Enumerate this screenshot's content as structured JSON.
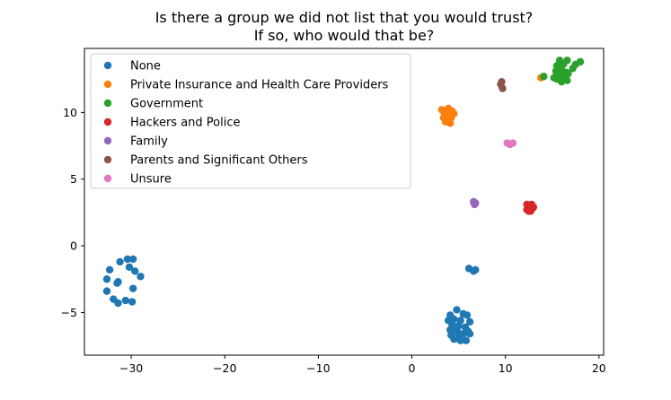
{
  "chart_data": {
    "type": "scatter",
    "title": "Is there a group we did not list that you would trust?\nIf so, who would that be?",
    "title_lines": [
      "Is there a group we did not list that you would trust?",
      "If so, who would that be?"
    ],
    "xlabel": "",
    "ylabel": "",
    "xlim": [
      -35.0,
      20.5
    ],
    "ylim": [
      -8.2,
      14.8
    ],
    "xticks": [
      -30,
      -20,
      -10,
      0,
      10,
      20
    ],
    "xtick_labels": [
      "−30",
      "−20",
      "−10",
      "0",
      "10",
      "20"
    ],
    "yticks": [
      -5,
      0,
      5,
      10
    ],
    "ytick_labels": [
      "−5",
      "0",
      "5",
      "10"
    ],
    "grid": false,
    "legend_position": "top-left",
    "series": [
      {
        "name": "None",
        "color": "#1f77b4",
        "points": [
          [
            -30.4,
            -1.0
          ],
          [
            -29.8,
            -1.0
          ],
          [
            -31.2,
            -1.2
          ],
          [
            -32.3,
            -1.8
          ],
          [
            -30.2,
            -1.6
          ],
          [
            -29.6,
            -1.9
          ],
          [
            -29.0,
            -2.3
          ],
          [
            -32.6,
            -2.5
          ],
          [
            -31.4,
            -2.7
          ],
          [
            -31.5,
            -2.8
          ],
          [
            -29.8,
            -3.2
          ],
          [
            -32.6,
            -3.4
          ],
          [
            -31.9,
            -4.0
          ],
          [
            -31.4,
            -4.3
          ],
          [
            -30.6,
            -4.1
          ],
          [
            -29.9,
            -4.2
          ],
          [
            6.1,
            -1.7
          ],
          [
            6.6,
            -1.9
          ],
          [
            6.8,
            -1.8
          ],
          [
            4.1,
            -5.2
          ],
          [
            4.8,
            -4.8
          ],
          [
            5.5,
            -5.1
          ],
          [
            5.9,
            -5.2
          ],
          [
            3.9,
            -5.6
          ],
          [
            4.5,
            -5.5
          ],
          [
            5.2,
            -5.6
          ],
          [
            6.2,
            -5.7
          ],
          [
            4.3,
            -5.9
          ],
          [
            5.0,
            -6.0
          ],
          [
            5.7,
            -6.1
          ],
          [
            4.1,
            -6.3
          ],
          [
            4.8,
            -6.3
          ],
          [
            6.0,
            -6.4
          ],
          [
            4.2,
            -6.7
          ],
          [
            5.1,
            -6.8
          ],
          [
            6.2,
            -6.6
          ],
          [
            4.5,
            -7.0
          ],
          [
            5.2,
            -7.1
          ],
          [
            5.8,
            -7.1
          ],
          [
            4.9,
            -6.5
          ],
          [
            5.5,
            -6.6
          ]
        ]
      },
      {
        "name": "Private Insurance and Health Care Providers",
        "color": "#ff7f0e",
        "points": [
          [
            3.2,
            10.2
          ],
          [
            3.9,
            10.3
          ],
          [
            4.3,
            10.1
          ],
          [
            3.5,
            9.9
          ],
          [
            4.0,
            9.8
          ],
          [
            4.5,
            9.9
          ],
          [
            3.4,
            9.6
          ],
          [
            3.8,
            9.5
          ],
          [
            4.2,
            9.6
          ],
          [
            3.6,
            9.3
          ],
          [
            4.1,
            9.2
          ],
          [
            3.9,
            9.4
          ],
          [
            13.8,
            12.6
          ]
        ]
      },
      {
        "name": "Government",
        "color": "#2ca02c",
        "points": [
          [
            15.8,
            13.9
          ],
          [
            16.6,
            13.9
          ],
          [
            17.5,
            13.6
          ],
          [
            18.0,
            13.8
          ],
          [
            15.5,
            13.5
          ],
          [
            16.2,
            13.6
          ],
          [
            17.2,
            13.3
          ],
          [
            15.4,
            13.1
          ],
          [
            16.0,
            13.2
          ],
          [
            16.5,
            13.0
          ],
          [
            15.6,
            12.8
          ],
          [
            16.2,
            12.7
          ],
          [
            16.7,
            12.9
          ],
          [
            15.5,
            12.5
          ],
          [
            16.0,
            12.3
          ],
          [
            16.6,
            12.4
          ],
          [
            15.2,
            12.6
          ],
          [
            14.1,
            12.7
          ],
          [
            15.9,
            13.7
          ]
        ]
      },
      {
        "name": "Hackers and Police",
        "color": "#d62728",
        "points": [
          [
            12.3,
            3.1
          ],
          [
            12.8,
            3.1
          ],
          [
            12.5,
            2.9
          ],
          [
            12.9,
            2.8
          ],
          [
            12.3,
            2.7
          ],
          [
            12.7,
            2.6
          ],
          [
            12.5,
            2.6
          ],
          [
            13.0,
            2.9
          ]
        ]
      },
      {
        "name": "Family",
        "color": "#9467bd",
        "points": [
          [
            6.6,
            3.3
          ],
          [
            6.8,
            3.2
          ],
          [
            6.7,
            3.1
          ]
        ]
      },
      {
        "name": "Parents and Significant Others",
        "color": "#8c564b",
        "points": [
          [
            9.6,
            12.3
          ],
          [
            9.5,
            12.1
          ],
          [
            9.7,
            11.8
          ]
        ]
      },
      {
        "name": "Unsure",
        "color": "#e377c2",
        "points": [
          [
            10.2,
            7.7
          ],
          [
            10.8,
            7.7
          ],
          [
            10.5,
            7.6
          ]
        ]
      }
    ]
  }
}
